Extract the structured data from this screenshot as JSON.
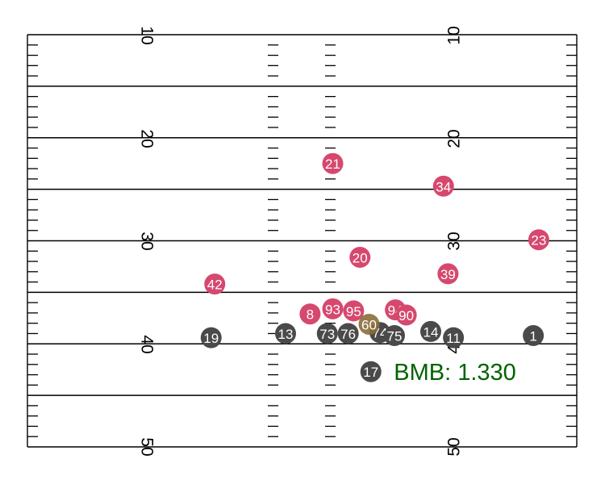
{
  "field": {
    "yard_lines": [
      10,
      20,
      30,
      40,
      50
    ],
    "labels": {
      "y10": "10",
      "y20": "20",
      "y30": "30",
      "y40": "40",
      "y50": "50"
    }
  },
  "colors": {
    "defense": "#d6486e",
    "offense": "#4a4a4a",
    "ball_carrier": "#8b6d3a",
    "metric": "#006400"
  },
  "metric": {
    "text": "BMB: 1.330"
  },
  "players": [
    {
      "id": "21",
      "team": "defense",
      "x": 27.0,
      "y": 22.5
    },
    {
      "id": "34",
      "team": "defense",
      "x": 14.8,
      "y": 24.7
    },
    {
      "id": "23",
      "team": "defense",
      "x": 4.3,
      "y": 29.9
    },
    {
      "id": "20",
      "team": "defense",
      "x": 24.0,
      "y": 31.6
    },
    {
      "id": "39",
      "team": "defense",
      "x": 14.3,
      "y": 33.2
    },
    {
      "id": "42",
      "team": "defense",
      "x": 40.0,
      "y": 34.2
    },
    {
      "id": "8",
      "team": "defense",
      "x": 29.5,
      "y": 37.1
    },
    {
      "id": "93",
      "team": "defense",
      "x": 27.0,
      "y": 36.6
    },
    {
      "id": "95",
      "team": "defense",
      "x": 24.7,
      "y": 36.8
    },
    {
      "id": "94",
      "team": "defense",
      "x": 20.1,
      "y": 36.7
    },
    {
      "id": "90",
      "team": "defense",
      "x": 18.9,
      "y": 37.2
    },
    {
      "id": "60",
      "team": "ball_carrier",
      "x": 23.0,
      "y": 38.1
    },
    {
      "id": "19",
      "team": "offense",
      "x": 40.4,
      "y": 39.4
    },
    {
      "id": "13",
      "team": "offense",
      "x": 32.2,
      "y": 39.0
    },
    {
      "id": "73",
      "team": "offense",
      "x": 27.6,
      "y": 39.0
    },
    {
      "id": "76",
      "team": "offense",
      "x": 25.3,
      "y": 39.0
    },
    {
      "id": "74",
      "team": "offense",
      "x": 21.8,
      "y": 38.9
    },
    {
      "id": "75",
      "team": "offense",
      "x": 20.2,
      "y": 39.2
    },
    {
      "id": "14",
      "team": "offense",
      "x": 16.2,
      "y": 38.8
    },
    {
      "id": "11",
      "team": "offense",
      "x": 13.7,
      "y": 39.4
    },
    {
      "id": "1",
      "team": "offense",
      "x": 4.9,
      "y": 39.2
    },
    {
      "id": "17",
      "team": "offense",
      "x": 22.8,
      "y": 42.7
    }
  ]
}
